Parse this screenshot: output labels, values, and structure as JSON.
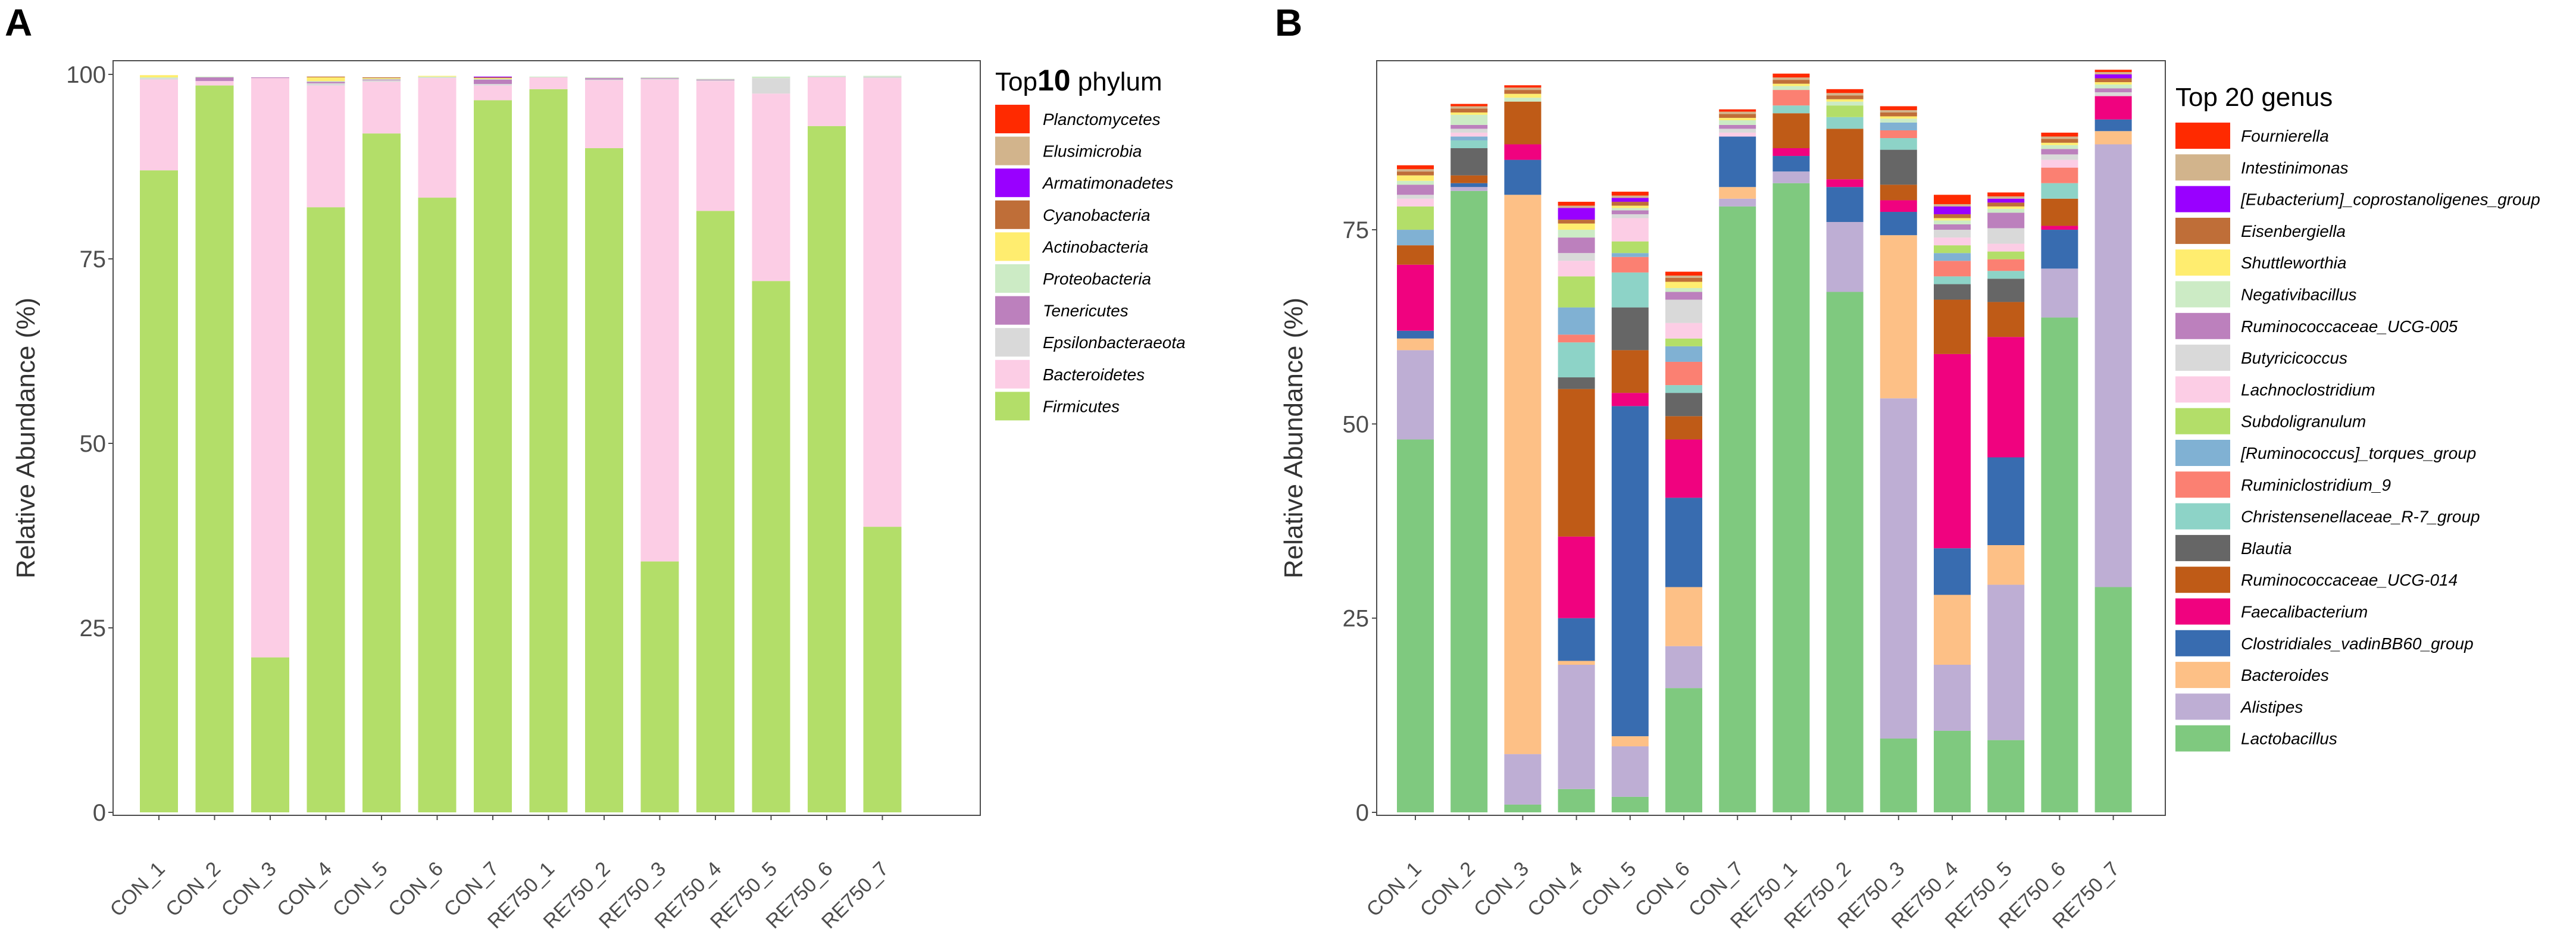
{
  "chart_data": [
    {
      "panel": "A",
      "type": "bar",
      "stacked": true,
      "title": "",
      "xlabel": "",
      "ylabel": "Relative Abundance (%)",
      "ylim": [
        0,
        100
      ],
      "yticks": [
        "0",
        "25",
        "50",
        "75",
        "100"
      ],
      "legend_title": "Top10 phylum",
      "legend_title_prefix": "Top",
      "legend_title_number": "10",
      "legend_title_suffix": " phylum",
      "legend_position": "right",
      "categories": [
        "CON_1",
        "CON_2",
        "CON_3",
        "CON_4",
        "CON_5",
        "CON_6",
        "CON_7",
        "RE750_1",
        "RE750_2",
        "RE750_3",
        "RE750_4",
        "RE750_5",
        "RE750_6",
        "RE750_7"
      ],
      "series": [
        {
          "name": "Firmicutes",
          "color": "#B3DE69",
          "values": [
            87,
            98.5,
            21,
            82,
            92,
            83.3,
            96.5,
            98,
            90,
            34,
            81.5,
            72,
            93,
            38.7
          ]
        },
        {
          "name": "Bacteroidetes",
          "color": "#FCCDE5",
          "values": [
            12.3,
            0.6,
            78.5,
            16.5,
            7,
            16.2,
            2,
            1.6,
            9.2,
            65.3,
            17.6,
            25.4,
            6.6,
            60.8
          ]
        },
        {
          "name": "Epsilonbacteraeota",
          "color": "#D9D9D9",
          "values": [
            0.2,
            0,
            0,
            0.3,
            0.2,
            0.1,
            0.2,
            0,
            0.1,
            0.1,
            0.1,
            2.1,
            0.1,
            0.2
          ]
        },
        {
          "name": "Tenericutes",
          "color": "#BC80BD",
          "values": [
            0,
            0.5,
            0.1,
            0.2,
            0.1,
            0,
            0.6,
            0,
            0.2,
            0.1,
            0.1,
            0,
            0,
            0
          ]
        },
        {
          "name": "Proteobacteria",
          "color": "#CCEBC5",
          "values": [
            0.1,
            0.1,
            0,
            0.1,
            0.1,
            0.1,
            0.1,
            0.1,
            0.1,
            0.1,
            0.1,
            0.2,
            0.1,
            0.1
          ]
        },
        {
          "name": "Actinobacteria",
          "color": "#FFED6F",
          "values": [
            0.3,
            0,
            0,
            0.5,
            0.1,
            0.1,
            0.1,
            0,
            0,
            0,
            0,
            0,
            0,
            0
          ]
        },
        {
          "name": "Cyanobacteria",
          "color": "#BF6E38",
          "values": [
            0,
            0,
            0,
            0.1,
            0.1,
            0,
            0.1,
            0,
            0,
            0,
            0,
            0,
            0,
            0
          ]
        },
        {
          "name": "Armatimonadetes",
          "color": "#9900FF",
          "values": [
            0,
            0,
            0,
            0,
            0,
            0,
            0.1,
            0,
            0,
            0,
            0,
            0,
            0,
            0
          ]
        },
        {
          "name": "Elusimicrobia",
          "color": "#D2B48C",
          "values": [
            0,
            0,
            0,
            0,
            0,
            0,
            0,
            0,
            0,
            0,
            0,
            0,
            0,
            0
          ]
        },
        {
          "name": "Planctomycetes",
          "color": "#FF2A00",
          "values": [
            0,
            0,
            0,
            0,
            0,
            0,
            0,
            0,
            0,
            0,
            0,
            0,
            0,
            0
          ]
        }
      ]
    },
    {
      "panel": "B",
      "type": "bar",
      "stacked": true,
      "title": "",
      "xlabel": "",
      "ylabel": "Relative Abundance (%)",
      "ylim": [
        0,
        95
      ],
      "yticks": [
        "0",
        "25",
        "50",
        "75"
      ],
      "legend_title": "Top 20 genus",
      "legend_position": "right",
      "categories": [
        "CON_1",
        "CON_2",
        "CON_3",
        "CON_4",
        "CON_5",
        "CON_6",
        "CON_7",
        "RE750_1",
        "RE750_2",
        "RE750_3",
        "RE750_4",
        "RE750_5",
        "RE750_6",
        "RE750_7"
      ],
      "series": [
        {
          "name": "Lactobacillus",
          "color": "#7FC97F",
          "values": [
            48,
            80,
            1,
            3,
            2,
            16,
            78,
            81,
            67,
            9.5,
            10.5,
            9.3,
            63.7,
            29
          ]
        },
        {
          "name": "Alistipes",
          "color": "#BEAED4",
          "values": [
            11.5,
            0.5,
            6.5,
            16,
            6.5,
            5.4,
            1,
            1.5,
            9,
            43.8,
            8.5,
            20,
            6.3,
            57
          ]
        },
        {
          "name": "Bacteroides",
          "color": "#FDC086",
          "values": [
            1.5,
            0,
            72,
            0.5,
            1.3,
            7.6,
            1.5,
            0,
            0,
            21,
            9,
            5.1,
            0,
            1.7
          ]
        },
        {
          "name": "Clostridiales_vadinBB60_group",
          "color": "#386CB0",
          "values": [
            1,
            0.5,
            4.5,
            5.5,
            42.5,
            11.5,
            6.5,
            2,
            4.5,
            3,
            6,
            11.3,
            5,
            1.5
          ]
        },
        {
          "name": "Faecalibacterium",
          "color": "#F0027F",
          "values": [
            8.5,
            0,
            2,
            10.5,
            1.7,
            7.5,
            0,
            1,
            1,
            1.5,
            25,
            15.5,
            0.5,
            3
          ]
        },
        {
          "name": "Ruminococcaceae_UCG-014",
          "color": "#BF5B17",
          "values": [
            2.5,
            1,
            5.5,
            19,
            5.5,
            3,
            0,
            4.5,
            6.5,
            2,
            7,
            4.5,
            3.5,
            0
          ]
        },
        {
          "name": "Blautia",
          "color": "#666666",
          "values": [
            0,
            3.5,
            0,
            1.5,
            5.5,
            3,
            0,
            0,
            0,
            4.5,
            2,
            3,
            0,
            0
          ]
        },
        {
          "name": "Christensenellaceae_R-7_group",
          "color": "#8DD3C7",
          "values": [
            0,
            1,
            0,
            4.5,
            4.5,
            1,
            0,
            1,
            1.5,
            1.5,
            1,
            1,
            2,
            0
          ]
        },
        {
          "name": "Ruminiclostridium_9",
          "color": "#FB8072",
          "values": [
            0,
            0,
            0,
            1,
            2,
            3,
            0,
            2,
            0,
            1,
            2,
            1.5,
            2,
            0
          ]
        },
        {
          "name": "[Ruminococcus]_torques_group",
          "color": "#80B1D3",
          "values": [
            2,
            0.5,
            0,
            3.5,
            0.5,
            2,
            0,
            0,
            0,
            1,
            1,
            0,
            0,
            0
          ]
        },
        {
          "name": "Subdoligranulum",
          "color": "#B3DE69",
          "values": [
            3,
            0,
            0,
            4,
            1.5,
            1,
            0,
            0,
            1.5,
            0,
            1,
            1,
            0,
            0
          ]
        },
        {
          "name": "Lachnoclostridium",
          "color": "#FCCDE5",
          "values": [
            1,
            0.5,
            0,
            2,
            3,
            2,
            0.5,
            0,
            0,
            0,
            1,
            1,
            1,
            0
          ]
        },
        {
          "name": "Butyricicoccus",
          "color": "#D9D9D9",
          "values": [
            0.5,
            0.5,
            0,
            1,
            0.5,
            3,
            0.5,
            0,
            0,
            0,
            1,
            2,
            0.7,
            0.5
          ]
        },
        {
          "name": "Ruminococcaceae_UCG-005",
          "color": "#BC80BD",
          "values": [
            1.3,
            0.5,
            0,
            2,
            0.5,
            1,
            0.5,
            0,
            0,
            0,
            0.7,
            2,
            0.7,
            0.5
          ]
        },
        {
          "name": "Negativibacillus",
          "color": "#CCEBC5",
          "values": [
            0.5,
            1.3,
            0.5,
            1,
            0.3,
            0.5,
            0.6,
            0.5,
            0.5,
            0.5,
            0.5,
            0.5,
            0.5,
            0.5
          ]
        },
        {
          "name": "Shuttleworthia",
          "color": "#FFED6F",
          "values": [
            0.7,
            0.3,
            0.5,
            0.8,
            0.3,
            0.8,
            0.3,
            0.3,
            0.3,
            0.3,
            0.3,
            0.3,
            0.3,
            0.3
          ]
        },
        {
          "name": "Eisenbergiella",
          "color": "#BF6E38",
          "values": [
            0.5,
            0.5,
            0.5,
            0.5,
            0.5,
            0.5,
            0.5,
            0.5,
            0.5,
            0.5,
            0.5,
            0.5,
            0.5,
            0.5
          ]
        },
        {
          "name": "[Eubacterium]_coprostanoligenes_group",
          "color": "#9900FF",
          "values": [
            0,
            0,
            0,
            1.5,
            0.5,
            0,
            0,
            0,
            0,
            0,
            1,
            0.5,
            0,
            0.5
          ]
        },
        {
          "name": "Intestinimonas",
          "color": "#D2B48C",
          "values": [
            0.3,
            0.3,
            0.3,
            0.3,
            0.3,
            0.3,
            0.3,
            0.3,
            0.3,
            0.3,
            0.3,
            0.3,
            0.3,
            0.3
          ]
        },
        {
          "name": "Fournierella",
          "color": "#FF2A00",
          "values": [
            0.5,
            0.3,
            0.3,
            0.5,
            0.5,
            0.5,
            0.3,
            0.5,
            0.5,
            0.5,
            1.2,
            0.5,
            0.5,
            0.3
          ]
        }
      ]
    }
  ]
}
